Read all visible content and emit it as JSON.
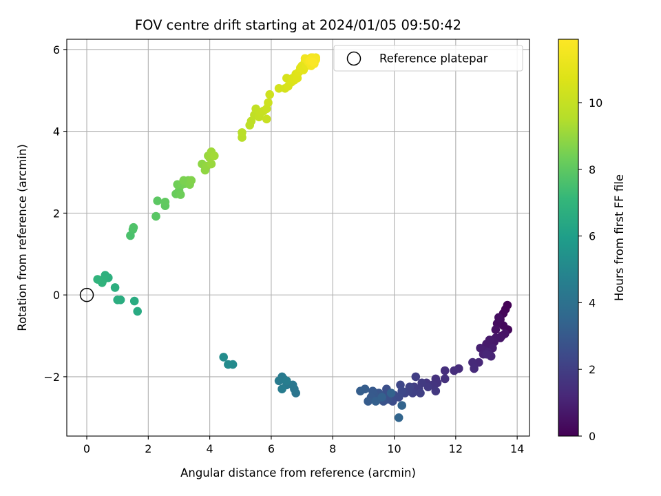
{
  "chart_data": {
    "type": "scatter",
    "title": "FOV centre drift starting at 2024/01/05 09:50:42",
    "xlabel": "Angular distance from reference (arcmin)",
    "ylabel": "Rotation from reference (arcmin)",
    "xlim": [
      -0.65,
      14.4
    ],
    "ylim": [
      -3.45,
      6.25
    ],
    "xticks": [
      0,
      2,
      4,
      6,
      8,
      10,
      12,
      14
    ],
    "xtick_labels": [
      "0",
      "2",
      "4",
      "6",
      "8",
      "10",
      "12",
      "14"
    ],
    "yticks": [
      -2,
      0,
      2,
      4,
      6
    ],
    "ytick_labels": [
      "−2",
      "0",
      "2",
      "4",
      "6"
    ],
    "grid": true,
    "legend": {
      "position": "top-right",
      "entries": [
        "Reference platepar"
      ]
    },
    "reference_point": {
      "x": 0,
      "y": 0,
      "label": "Reference platepar"
    },
    "colorbar": {
      "label": "Hours from first FF file",
      "colormap": "viridis",
      "range": [
        0,
        11.9
      ],
      "ticks": [
        0,
        2,
        4,
        6,
        8,
        10
      ],
      "tick_labels": [
        "0",
        "2",
        "4",
        "6",
        "8",
        "10"
      ]
    },
    "points": [
      [
        13.68,
        -0.25,
        0.05
      ],
      [
        13.62,
        -0.35,
        0.1
      ],
      [
        13.55,
        -0.45,
        0.15
      ],
      [
        13.7,
        -0.85,
        0.2
      ],
      [
        13.55,
        -0.75,
        0.25
      ],
      [
        13.45,
        -0.6,
        0.3
      ],
      [
        13.35,
        -0.7,
        0.35
      ],
      [
        13.4,
        -0.55,
        0.4
      ],
      [
        13.3,
        -0.85,
        0.45
      ],
      [
        13.5,
        -1.0,
        0.5
      ],
      [
        13.6,
        -0.95,
        0.55
      ],
      [
        13.45,
        -1.05,
        0.6
      ],
      [
        13.3,
        -1.05,
        0.65
      ],
      [
        13.25,
        -1.15,
        0.7
      ],
      [
        13.1,
        -1.1,
        0.75
      ],
      [
        13.0,
        -1.2,
        0.8
      ],
      [
        13.2,
        -1.3,
        0.85
      ],
      [
        12.95,
        -1.35,
        0.9
      ],
      [
        12.8,
        -1.3,
        0.95
      ],
      [
        13.05,
        -1.4,
        1.0
      ],
      [
        12.9,
        -1.45,
        1.05
      ],
      [
        13.15,
        -1.5,
        1.1
      ],
      [
        13.0,
        -1.45,
        1.15
      ],
      [
        12.75,
        -1.65,
        1.2
      ],
      [
        12.55,
        -1.65,
        1.25
      ],
      [
        12.6,
        -1.8,
        1.3
      ],
      [
        12.1,
        -1.8,
        1.35
      ],
      [
        11.95,
        -1.85,
        1.4
      ],
      [
        11.65,
        -1.85,
        1.45
      ],
      [
        11.65,
        -2.05,
        1.5
      ],
      [
        11.35,
        -2.05,
        1.55
      ],
      [
        11.4,
        -2.15,
        1.6
      ],
      [
        11.25,
        -2.2,
        1.65
      ],
      [
        11.05,
        -2.15,
        1.7
      ],
      [
        11.35,
        -2.35,
        1.75
      ],
      [
        11.1,
        -2.25,
        1.8
      ],
      [
        10.9,
        -2.15,
        1.85
      ],
      [
        10.8,
        -2.3,
        1.9
      ],
      [
        10.65,
        -2.25,
        1.95
      ],
      [
        10.7,
        -2.0,
        2.0
      ],
      [
        10.85,
        -2.4,
        2.05
      ],
      [
        10.6,
        -2.4,
        2.1
      ],
      [
        10.5,
        -2.25,
        2.15
      ],
      [
        10.45,
        -2.35,
        2.2
      ],
      [
        10.35,
        -2.4,
        2.25
      ],
      [
        10.2,
        -2.2,
        2.3
      ],
      [
        10.25,
        -2.35,
        2.35
      ],
      [
        10.15,
        -2.5,
        2.4
      ],
      [
        10.0,
        -2.45,
        2.45
      ],
      [
        9.95,
        -2.6,
        2.5
      ],
      [
        9.85,
        -2.5,
        2.55
      ],
      [
        9.75,
        -2.3,
        2.6
      ],
      [
        9.7,
        -2.45,
        2.65
      ],
      [
        9.8,
        -2.55,
        2.7
      ],
      [
        9.65,
        -2.6,
        2.75
      ],
      [
        9.55,
        -2.5,
        2.8
      ],
      [
        9.5,
        -2.4,
        2.85
      ],
      [
        9.45,
        -2.55,
        2.9
      ],
      [
        9.35,
        -2.45,
        2.95
      ],
      [
        9.3,
        -2.35,
        3.0
      ],
      [
        9.25,
        -2.5,
        3.05
      ],
      [
        9.15,
        -2.6,
        3.1
      ],
      [
        9.05,
        -2.3,
        3.15
      ],
      [
        8.9,
        -2.35,
        3.2
      ],
      [
        9.4,
        -2.6,
        3.25
      ],
      [
        9.6,
        -2.5,
        3.3
      ],
      [
        9.9,
        -2.4,
        3.35
      ],
      [
        10.25,
        -2.7,
        3.4
      ],
      [
        10.15,
        -3.0,
        3.45
      ],
      [
        6.8,
        -2.4,
        4.15
      ],
      [
        6.75,
        -2.3,
        4.2
      ],
      [
        6.7,
        -2.2,
        4.25
      ],
      [
        6.5,
        -2.2,
        4.3
      ],
      [
        6.4,
        -2.05,
        4.35
      ],
      [
        6.35,
        -2.0,
        4.4
      ],
      [
        6.25,
        -2.1,
        4.45
      ],
      [
        6.35,
        -2.3,
        4.5
      ],
      [
        6.5,
        -2.1,
        4.55
      ],
      [
        4.75,
        -1.7,
        5.1
      ],
      [
        4.6,
        -1.7,
        5.15
      ],
      [
        4.45,
        -1.52,
        5.2
      ],
      [
        1.65,
        -0.4,
        6.5
      ],
      [
        1.55,
        -0.15,
        6.55
      ],
      [
        1.1,
        -0.12,
        6.6
      ],
      [
        1.0,
        -0.12,
        6.65
      ],
      [
        0.92,
        0.18,
        6.7
      ],
      [
        0.7,
        0.42,
        6.75
      ],
      [
        0.6,
        0.48,
        6.8
      ],
      [
        0.55,
        0.38,
        6.85
      ],
      [
        0.5,
        0.3,
        6.9
      ],
      [
        0.35,
        0.38,
        6.95
      ],
      [
        1.42,
        1.45,
        7.6
      ],
      [
        1.5,
        1.6,
        7.65
      ],
      [
        1.52,
        1.65,
        7.7
      ],
      [
        2.25,
        1.92,
        7.9
      ],
      [
        2.3,
        2.3,
        7.95
      ],
      [
        2.55,
        2.18,
        8.0
      ],
      [
        2.55,
        2.27,
        8.05
      ],
      [
        2.9,
        2.47,
        8.2
      ],
      [
        3.0,
        2.55,
        8.25
      ],
      [
        3.05,
        2.45,
        8.3
      ],
      [
        2.95,
        2.7,
        8.35
      ],
      [
        3.1,
        2.7,
        8.4
      ],
      [
        3.2,
        2.72,
        8.45
      ],
      [
        3.3,
        2.8,
        8.5
      ],
      [
        3.15,
        2.8,
        8.55
      ],
      [
        3.35,
        2.7,
        8.6
      ],
      [
        3.4,
        2.8,
        8.65
      ],
      [
        3.75,
        3.2,
        8.85
      ],
      [
        3.85,
        3.05,
        8.9
      ],
      [
        3.9,
        3.15,
        8.95
      ],
      [
        3.95,
        3.4,
        9.0
      ],
      [
        4.05,
        3.2,
        9.05
      ],
      [
        4.0,
        3.35,
        9.1
      ],
      [
        4.05,
        3.5,
        9.15
      ],
      [
        4.15,
        3.4,
        9.2
      ],
      [
        5.05,
        3.85,
        9.6
      ],
      [
        5.05,
        3.97,
        9.65
      ],
      [
        5.3,
        4.15,
        9.75
      ],
      [
        5.35,
        4.25,
        9.8
      ],
      [
        5.45,
        4.4,
        9.85
      ],
      [
        5.5,
        4.55,
        9.9
      ],
      [
        5.6,
        4.35,
        9.95
      ],
      [
        5.65,
        4.45,
        10.0
      ],
      [
        5.75,
        4.5,
        10.05
      ],
      [
        5.85,
        4.3,
        10.1
      ],
      [
        5.85,
        4.55,
        10.15
      ],
      [
        5.9,
        4.7,
        10.2
      ],
      [
        5.95,
        4.9,
        10.25
      ],
      [
        6.25,
        5.05,
        10.4
      ],
      [
        6.45,
        5.05,
        10.45
      ],
      [
        6.5,
        5.3,
        10.5
      ],
      [
        6.55,
        5.1,
        10.55
      ],
      [
        6.65,
        5.2,
        10.6
      ],
      [
        6.7,
        5.3,
        10.65
      ],
      [
        6.75,
        5.25,
        10.7
      ],
      [
        6.8,
        5.4,
        10.75
      ],
      [
        6.85,
        5.3,
        10.8
      ],
      [
        6.9,
        5.45,
        10.85
      ],
      [
        6.95,
        5.55,
        10.9
      ],
      [
        7.0,
        5.6,
        10.95
      ],
      [
        7.05,
        5.5,
        10.98
      ],
      [
        7.1,
        5.7,
        11.05
      ],
      [
        7.15,
        5.6,
        11.1
      ],
      [
        7.2,
        5.75,
        11.15
      ],
      [
        7.25,
        5.65,
        11.2
      ],
      [
        7.3,
        5.8,
        11.25
      ],
      [
        7.35,
        5.75,
        11.3
      ],
      [
        7.4,
        5.7,
        11.35
      ],
      [
        7.45,
        5.8,
        11.4
      ],
      [
        7.1,
        5.78,
        11.45
      ],
      [
        7.2,
        5.7,
        11.5
      ],
      [
        7.3,
        5.6,
        11.55
      ],
      [
        7.35,
        5.8,
        11.6
      ],
      [
        7.45,
        5.75,
        11.65
      ],
      [
        7.4,
        5.65,
        11.7
      ],
      [
        7.25,
        5.72,
        11.75
      ],
      [
        7.35,
        5.7,
        11.8
      ]
    ]
  }
}
